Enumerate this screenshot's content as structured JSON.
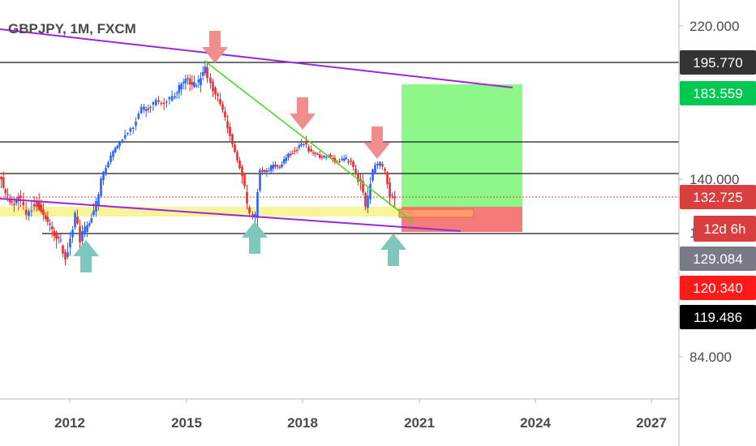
{
  "chart_data": {
    "type": "candlestick",
    "title": "GBPJPY, 1M, FXCM",
    "x_ticks": [
      "2012",
      "2015",
      "2018",
      "2021",
      "2024",
      "2027"
    ],
    "y_ticks": [
      "220.000",
      "140.000",
      "84.000"
    ],
    "price_badges": [
      {
        "label": "195.770",
        "bg": "#333333",
        "fg": "#ffffff"
      },
      {
        "label": "183.559",
        "bg": "#00c853",
        "fg": "#000000"
      },
      {
        "label": "132.725",
        "bg": "#d93f3f",
        "fg": "#ffffff"
      },
      {
        "label": "12d 6h",
        "bg": "#d93f3f",
        "fg": "#ffffff"
      },
      {
        "label": "129.084",
        "bg": "#787b86",
        "fg": "#ffffff"
      },
      {
        "label": "120.340",
        "bg": "#ff1a1a",
        "fg": "#ffffff"
      },
      {
        "label": "119.486",
        "bg": "#000000",
        "fg": "#ffffff"
      }
    ],
    "horizontal_levels": [
      195.77,
      163,
      140,
      119.486
    ],
    "current_price": 132.725,
    "colors": {
      "up": "#2962ff",
      "down": "#ef2b2b",
      "trend_purple": "#9c27d8",
      "trend_green": "#44dd22",
      "zone_yellow": "#f8f49a",
      "target_green": "#8df78a",
      "stop_red": "#f77a7a",
      "arrow_down": "#f08e8e",
      "arrow_up": "#7fc7bc"
    }
  }
}
